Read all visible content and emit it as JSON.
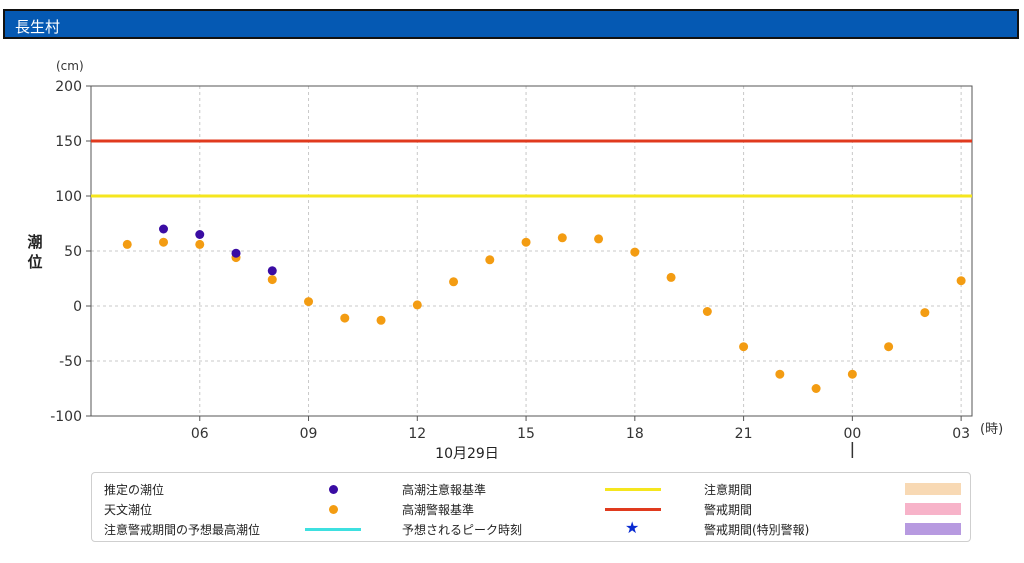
{
  "header": {
    "title": "長生村"
  },
  "colors": {
    "title_bg": "#0559b3",
    "estimated": "#3a0ca3",
    "astronomical": "#f39c12",
    "caution_line": "#f5e61e",
    "warning_line": "#e03a1e",
    "peak_line": "#3ee0e0",
    "peak_star": "#0a2bd1",
    "caution_period": "#f8d9b4",
    "warning_period": "#f7b3c9",
    "special_period": "#b79ae0"
  },
  "chart_data": {
    "type": "scatter",
    "ylabel": "潮位",
    "yunit": "(cm)",
    "xunit": "(時)",
    "date_label": "10月29日",
    "ylim": [
      -100,
      200
    ],
    "yticks": [
      200,
      150,
      100,
      50,
      0,
      -50,
      -100
    ],
    "x_range_hours": [
      3,
      27.3
    ],
    "xticks": [
      {
        "hour": 6,
        "label": "06"
      },
      {
        "hour": 9,
        "label": "09"
      },
      {
        "hour": 12,
        "label": "12"
      },
      {
        "hour": 15,
        "label": "15"
      },
      {
        "hour": 18,
        "label": "18"
      },
      {
        "hour": 21,
        "label": "21"
      },
      {
        "hour": 24,
        "label": "00"
      },
      {
        "hour": 27,
        "label": "03"
      }
    ],
    "grid": true,
    "thresholds": [
      {
        "name": "高潮警報基準",
        "value": 150
      },
      {
        "name": "高潮注意報基準",
        "value": 100
      }
    ],
    "series": [
      {
        "name": "推定の潮位",
        "points": [
          [
            5,
            70
          ],
          [
            6,
            65
          ],
          [
            7,
            48
          ],
          [
            8,
            32
          ]
        ]
      },
      {
        "name": "天文潮位",
        "points": [
          [
            4,
            56
          ],
          [
            5,
            58
          ],
          [
            6,
            56
          ],
          [
            7,
            44
          ],
          [
            8,
            24
          ],
          [
            9,
            4
          ],
          [
            10,
            -11
          ],
          [
            11,
            -13
          ],
          [
            12,
            1
          ],
          [
            13,
            22
          ],
          [
            14,
            42
          ],
          [
            15,
            58
          ],
          [
            16,
            62
          ],
          [
            17,
            61
          ],
          [
            18,
            49
          ],
          [
            19,
            26
          ],
          [
            20,
            -5
          ],
          [
            21,
            -37
          ],
          [
            22,
            -62
          ],
          [
            23,
            -75
          ],
          [
            24,
            -62
          ],
          [
            25,
            -37
          ],
          [
            26,
            -6
          ],
          [
            27,
            23
          ]
        ]
      }
    ]
  },
  "legend": {
    "estimated": "推定の潮位",
    "astronomical": "天文潮位",
    "peak_line": "注意警戒期間の予想最高潮位",
    "caution_std": "高潮注意報基準",
    "warning_std": "高潮警報基準",
    "peak_time": "予想されるピーク時刻",
    "caution_period": "注意期間",
    "warning_period": "警戒期間",
    "special_period": "警戒期間(特別警報)"
  }
}
